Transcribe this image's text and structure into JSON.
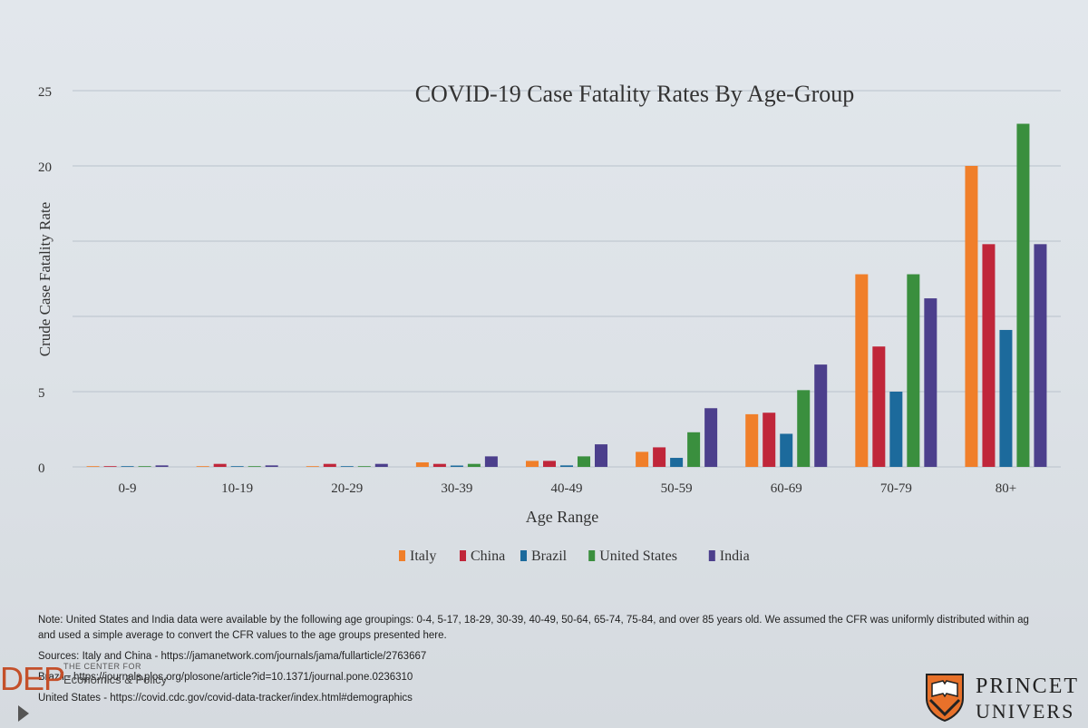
{
  "chart_data": {
    "type": "bar",
    "title": "COVID-19 Case Fatality Rates By Age-Group",
    "xlabel": "Age Range",
    "ylabel": "Crude Case Fatality Rate",
    "ylim": [
      0,
      25
    ],
    "yticks": [
      0,
      5,
      10,
      15,
      20,
      25
    ],
    "ytick_labels": [
      "0",
      "5",
      "",
      "",
      "20",
      "25"
    ],
    "grid": true,
    "legend_position": "bottom",
    "categories": [
      "0-9",
      "10-19",
      "20-29",
      "30-39",
      "40-49",
      "50-59",
      "60-69",
      "70-79",
      "80+"
    ],
    "series": [
      {
        "name": "Italy",
        "color": "#f07f2a",
        "values": [
          0.0,
          0.0,
          0.0,
          0.3,
          0.4,
          1.0,
          3.5,
          12.8,
          20.0
        ]
      },
      {
        "name": "China",
        "color": "#c0263a",
        "values": [
          0.0,
          0.2,
          0.2,
          0.2,
          0.4,
          1.3,
          3.6,
          8.0,
          14.8
        ]
      },
      {
        "name": "Brazil",
        "color": "#1c6a9c",
        "values": [
          0.0,
          0.0,
          0.0,
          0.05,
          0.1,
          0.6,
          2.2,
          5.0,
          9.1
        ]
      },
      {
        "name": "United States",
        "color": "#3a8f3e",
        "values": [
          0.0,
          0.0,
          0.0,
          0.2,
          0.7,
          2.3,
          5.1,
          12.8,
          22.8
        ]
      },
      {
        "name": "India",
        "color": "#4c3f8c",
        "values": [
          0.1,
          0.1,
          0.2,
          0.7,
          1.5,
          3.9,
          6.8,
          11.2,
          14.8
        ]
      }
    ]
  },
  "notes": {
    "line1": "Note: United States and India data were available by the following age groupings: 0-4, 5-17, 18-29, 30-39, 40-49, 50-64, 65-74, 75-84, and over 85 years old. We assumed the CFR was uniformly distributed within ag",
    "line2": "and used a simple average to convert the CFR values to the age groups presented here.",
    "line3": "Sources: Italy and China - https://jamanetwork.com/journals/jama/fullarticle/2763667",
    "line4": "Brazil - https://journals.plos.org/plosone/article?id=10.1371/journal.pone.0236310",
    "line5": "United States - https://covid.cdc.gov/covid-data-tracker/index.html#demographics"
  },
  "branding": {
    "left_big": "DEP",
    "left_small1": "THE CENTER FOR",
    "left_small2": "Economics & Policy",
    "right_line1": "PRINCET",
    "right_line2": "UNIVERS"
  }
}
